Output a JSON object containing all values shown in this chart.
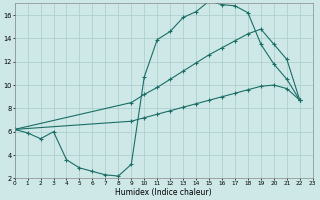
{
  "xlabel": "Humidex (Indice chaleur)",
  "bg_color": "#cee8e8",
  "line_color": "#1a6e66",
  "grid_color": "#aacccc",
  "xlim": [
    0,
    23
  ],
  "ylim": [
    2,
    17
  ],
  "xticks": [
    0,
    1,
    2,
    3,
    4,
    5,
    6,
    7,
    8,
    9,
    10,
    11,
    12,
    13,
    14,
    15,
    16,
    17,
    18,
    19,
    20,
    21,
    22,
    23
  ],
  "yticks": [
    2,
    4,
    6,
    8,
    10,
    12,
    14,
    16
  ],
  "line1_x": [
    0,
    1,
    2,
    3,
    4,
    5,
    6,
    7,
    8,
    9,
    10,
    11,
    12,
    13,
    14,
    15,
    16,
    17,
    18,
    19,
    20,
    21,
    22
  ],
  "line1_y": [
    6.2,
    5.9,
    5.4,
    6.0,
    3.6,
    2.9,
    2.6,
    2.3,
    2.2,
    3.2,
    10.7,
    13.9,
    14.6,
    15.8,
    16.3,
    17.2,
    16.9,
    16.8,
    16.2,
    13.5,
    11.8,
    10.5,
    8.7
  ],
  "line2_x": [
    0,
    9,
    10,
    11,
    12,
    13,
    14,
    15,
    16,
    17,
    18,
    19,
    20,
    21,
    22
  ],
  "line2_y": [
    6.2,
    8.5,
    9.2,
    9.8,
    10.5,
    11.2,
    11.9,
    12.6,
    13.2,
    13.8,
    14.4,
    14.8,
    13.5,
    12.2,
    8.7
  ],
  "line3_x": [
    0,
    9,
    10,
    11,
    12,
    13,
    14,
    15,
    16,
    17,
    18,
    19,
    20,
    21,
    22
  ],
  "line3_y": [
    6.2,
    6.9,
    7.2,
    7.5,
    7.8,
    8.1,
    8.4,
    8.7,
    9.0,
    9.3,
    9.6,
    9.9,
    10.0,
    9.7,
    8.7
  ]
}
